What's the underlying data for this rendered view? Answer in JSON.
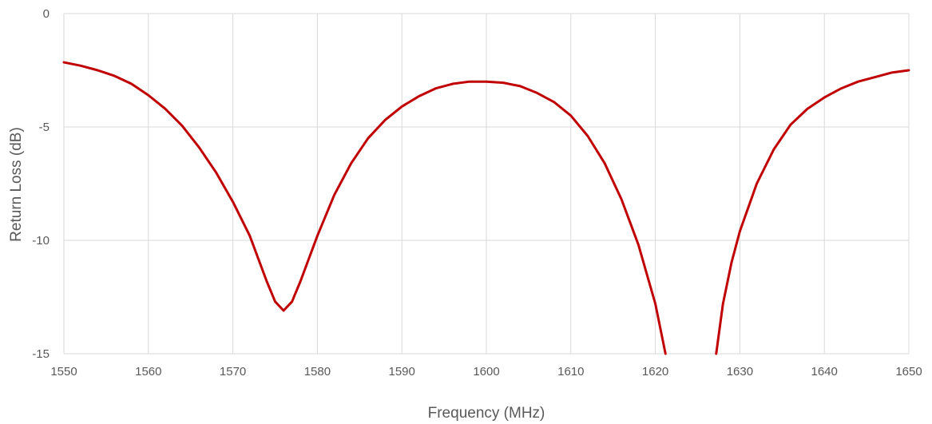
{
  "chart_data": {
    "type": "line",
    "title": "",
    "xlabel": "Frequency (MHz)",
    "ylabel": "Return Loss (dB)",
    "xlim": [
      1550,
      1650
    ],
    "ylim": [
      -15,
      0
    ],
    "xticks": [
      1550,
      1560,
      1570,
      1580,
      1590,
      1600,
      1610,
      1620,
      1630,
      1640,
      1650
    ],
    "yticks": [
      0,
      -5,
      -10,
      -15
    ],
    "grid": true,
    "legend": "none",
    "series": [
      {
        "color": "#c00000",
        "segments": [
          [
            [
              1550,
              -2.15
            ],
            [
              1552,
              -2.3
            ],
            [
              1554,
              -2.5
            ],
            [
              1556,
              -2.75
            ],
            [
              1558,
              -3.1
            ],
            [
              1560,
              -3.6
            ],
            [
              1562,
              -4.2
            ],
            [
              1564,
              -4.95
            ],
            [
              1566,
              -5.9
            ],
            [
              1568,
              -7.0
            ],
            [
              1570,
              -8.3
            ],
            [
              1572,
              -9.8
            ],
            [
              1573,
              -10.8
            ],
            [
              1574,
              -11.8
            ],
            [
              1575,
              -12.7
            ],
            [
              1576,
              -13.1
            ],
            [
              1577,
              -12.7
            ],
            [
              1578,
              -11.8
            ],
            [
              1579,
              -10.8
            ],
            [
              1580,
              -9.8
            ],
            [
              1582,
              -8.0
            ],
            [
              1584,
              -6.6
            ],
            [
              1586,
              -5.5
            ],
            [
              1588,
              -4.7
            ],
            [
              1590,
              -4.1
            ],
            [
              1592,
              -3.65
            ],
            [
              1594,
              -3.3
            ],
            [
              1596,
              -3.1
            ],
            [
              1598,
              -3.0
            ],
            [
              1600,
              -3.0
            ],
            [
              1602,
              -3.05
            ],
            [
              1604,
              -3.2
            ],
            [
              1606,
              -3.5
            ],
            [
              1608,
              -3.9
            ],
            [
              1610,
              -4.5
            ],
            [
              1612,
              -5.4
            ],
            [
              1614,
              -6.6
            ],
            [
              1616,
              -8.2
            ],
            [
              1618,
              -10.2
            ],
            [
              1620,
              -12.8
            ],
            [
              1621.2,
              -15.0
            ]
          ],
          [
            [
              1627.2,
              -15.0
            ],
            [
              1628,
              -12.8
            ],
            [
              1629,
              -11.0
            ],
            [
              1630,
              -9.6
            ],
            [
              1632,
              -7.5
            ],
            [
              1634,
              -6.0
            ],
            [
              1636,
              -4.9
            ],
            [
              1638,
              -4.2
            ],
            [
              1640,
              -3.7
            ],
            [
              1642,
              -3.3
            ],
            [
              1644,
              -3.0
            ],
            [
              1646,
              -2.8
            ],
            [
              1648,
              -2.6
            ],
            [
              1650,
              -2.5
            ]
          ]
        ]
      }
    ]
  }
}
